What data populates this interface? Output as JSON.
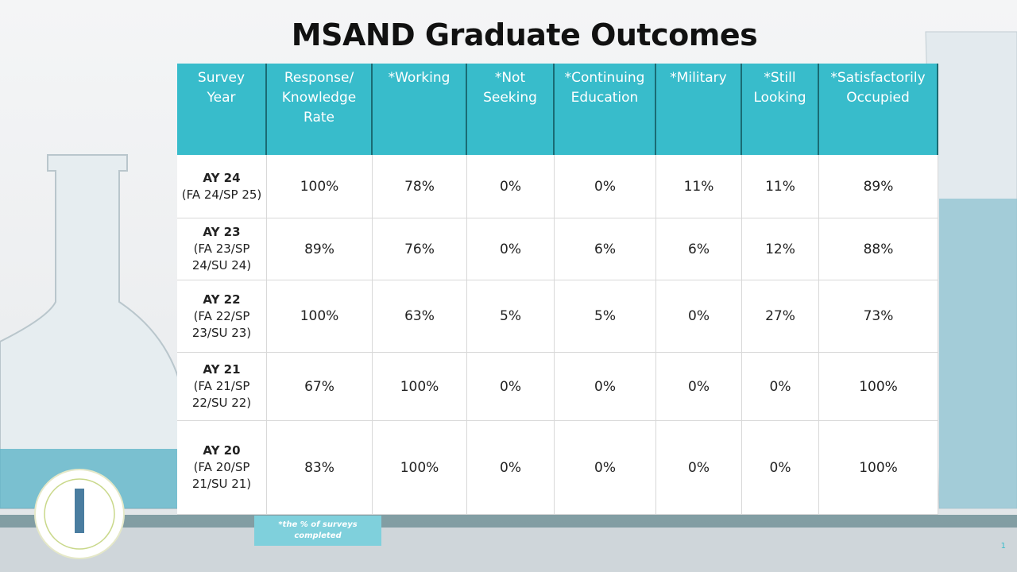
{
  "header": {
    "title": "MSAND Graduate Outcomes"
  },
  "table": {
    "columns": [
      "Survey Year",
      "Response/ Knowledge Rate",
      "*Working",
      "*Not Seeking",
      "*Continuing Education",
      "*Military",
      "*Still Looking",
      "*Satisfactorily Occupied"
    ],
    "rows": [
      {
        "label": "AY 24",
        "sublabel": "(FA 24/SP 25)",
        "cells": [
          "100%",
          "78%",
          "0%",
          "0%",
          "11%",
          "11%",
          "89%"
        ]
      },
      {
        "label": "AY 23",
        "sublabel": "(FA 23/SP 24/SU 24)",
        "cells": [
          "89%",
          "76%",
          "0%",
          "6%",
          "6%",
          "12%",
          "88%"
        ]
      },
      {
        "label": "AY 22",
        "sublabel": "(FA 22/SP 23/SU 23)",
        "cells": [
          "100%",
          "63%",
          "5%",
          "5%",
          "0%",
          "27%",
          "73%"
        ]
      },
      {
        "label": "AY 21",
        "sublabel": "(FA 21/SP 22/SU 22)",
        "cells": [
          "67%",
          "100%",
          "0%",
          "0%",
          "0%",
          "0%",
          "100%"
        ]
      },
      {
        "label": "AY 20",
        "sublabel": "(FA 20/SP 21/SU 21)",
        "cells": [
          "83%",
          "100%",
          "0%",
          "0%",
          "0%",
          "0%",
          "100%"
        ]
      }
    ]
  },
  "footnote": "*the % of surveys completed",
  "page_number": "1"
}
